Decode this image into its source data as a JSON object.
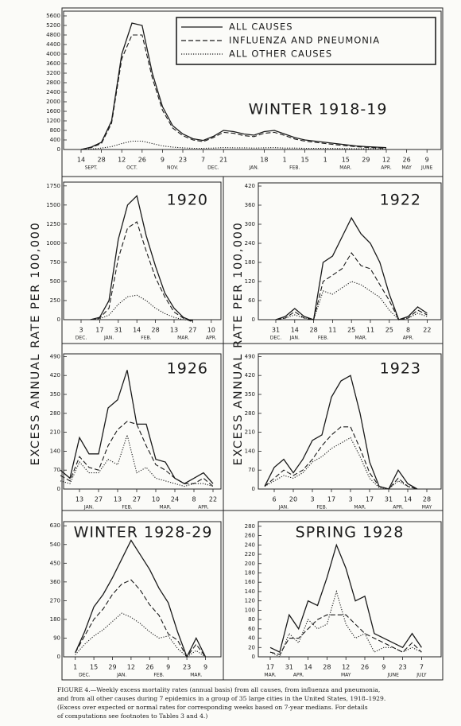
{
  "y_axis_label": "EXCESS ANNUAL RATE PER 100,000",
  "caption": [
    "FIGURE 4.—Weekly excess mortality rates (annual basis) from all causes, from influenza and pneumonia,",
    "and from all other causes during 7 epidemics in a group of 35 large cities in the United States, 1918–1929.",
    "(Excess over expected or normal rates for corresponding weeks based on 7-year medians.  For details",
    "of computations see footnotes to Tables 3 and 4.)"
  ],
  "chart_data": [
    {
      "type": "line",
      "title": "WINTER 1918-19",
      "legend": "upper right",
      "categories": [
        "14",
        null,
        "28",
        null,
        "12",
        null,
        "26",
        null,
        "9",
        null,
        "23",
        null,
        "7",
        null,
        "21",
        null,
        null,
        null,
        "18",
        null,
        "1",
        null,
        "15",
        null,
        "1",
        null,
        "15",
        null,
        "29",
        null,
        "12",
        null,
        "26",
        null,
        "9"
      ],
      "months": [
        {
          "label": "SEPT.",
          "span": [
            0,
            2
          ]
        },
        {
          "label": "OCT.",
          "span": [
            4,
            6
          ]
        },
        {
          "label": "NOV.",
          "span": [
            8,
            10
          ]
        },
        {
          "label": "DEC.",
          "span": [
            12,
            14
          ]
        },
        {
          "label": "JAN.",
          "span": [
            16,
            18
          ]
        },
        {
          "label": "FEB.",
          "span": [
            20,
            22
          ]
        },
        {
          "label": "MAR.",
          "span": [
            24,
            28
          ]
        },
        {
          "label": "APR.",
          "span": [
            30,
            30
          ]
        },
        {
          "label": "MAY",
          "span": [
            32,
            32
          ]
        },
        {
          "label": "JUNE",
          "span": [
            34,
            34
          ]
        }
      ],
      "ylim": [
        0,
        5800
      ],
      "yticks": [
        0,
        400,
        800,
        1200,
        1600,
        2000,
        2400,
        2800,
        3200,
        3600,
        4000,
        4400,
        4800,
        5200,
        5600
      ],
      "series": [
        {
          "name": "ALL CAUSES",
          "style": "solid",
          "color": "#1a1a1a",
          "values": [
            0,
            100,
            300,
            1200,
            4000,
            5300,
            5200,
            3200,
            1800,
            1000,
            650,
            450,
            380,
            550,
            800,
            750,
            650,
            600,
            750,
            800,
            650,
            500,
            400,
            350,
            300,
            250,
            200,
            150,
            120,
            100,
            80,
            null,
            null,
            null,
            null
          ]
        },
        {
          "name": "INFLUENZA AND PNEUMONIA",
          "style": "dashed",
          "color": "#1a1a1a",
          "values": [
            0,
            80,
            250,
            1100,
            3800,
            4800,
            4800,
            3000,
            1650,
            900,
            580,
            400,
            330,
            500,
            720,
            680,
            580,
            540,
            680,
            720,
            590,
            440,
            350,
            300,
            250,
            200,
            160,
            120,
            90,
            70,
            50,
            null,
            null,
            null,
            null
          ]
        },
        {
          "name": "ALL OTHER CAUSES",
          "style": "dotted",
          "color": "#1a1a1a",
          "values": [
            0,
            20,
            60,
            120,
            250,
            350,
            350,
            250,
            150,
            100,
            70,
            50,
            50,
            60,
            80,
            70,
            70,
            60,
            70,
            80,
            60,
            60,
            50,
            50,
            50,
            40,
            40,
            30,
            30,
            30,
            20,
            null,
            null,
            null,
            null
          ]
        }
      ]
    },
    {
      "type": "line",
      "title": "1920",
      "categories": [
        "3",
        null,
        "17",
        null,
        "31",
        null,
        "14",
        null,
        "28",
        null,
        "13",
        null,
        "27",
        null,
        "10"
      ],
      "months": [
        {
          "label": "DEC.",
          "span": [
            0,
            0
          ]
        },
        {
          "label": "JAN.",
          "span": [
            2,
            4
          ]
        },
        {
          "label": "FEB.",
          "span": [
            6,
            8
          ]
        },
        {
          "label": "MAR.",
          "span": [
            10,
            12
          ]
        },
        {
          "label": "APR.",
          "span": [
            14,
            14
          ]
        }
      ],
      "ylim": [
        0,
        1800
      ],
      "yticks": [
        0,
        250,
        500,
        750,
        1000,
        1250,
        1500,
        1750
      ],
      "series": [
        {
          "style": "solid",
          "color": "#1a1a1a",
          "values": [
            null,
            0,
            30,
            250,
            1050,
            1500,
            1620,
            1100,
            700,
            350,
            150,
            30,
            -20,
            null,
            null
          ]
        },
        {
          "style": "dashed",
          "color": "#1a1a1a",
          "values": [
            null,
            0,
            20,
            150,
            800,
            1200,
            1280,
            900,
            550,
            300,
            100,
            20,
            -30,
            null,
            null
          ]
        },
        {
          "style": "dotted",
          "color": "#1a1a1a",
          "values": [
            null,
            0,
            10,
            60,
            200,
            300,
            320,
            250,
            150,
            80,
            30,
            0,
            -10,
            null,
            null
          ]
        }
      ]
    },
    {
      "type": "line",
      "title": "1922",
      "categories": [
        "31",
        null,
        "14",
        null,
        "28",
        null,
        "11",
        null,
        "25",
        null,
        "11",
        null,
        "25",
        null,
        "8",
        null,
        "22"
      ],
      "months": [
        {
          "label": "DEC.",
          "span": [
            0,
            0
          ]
        },
        {
          "label": "JAN.",
          "span": [
            2,
            2
          ]
        },
        {
          "label": "FEB.",
          "span": [
            4,
            6
          ]
        },
        {
          "label": "MAR.",
          "span": [
            8,
            10
          ]
        },
        {
          "label": "APR.",
          "span": [
            14,
            14
          ]
        }
      ],
      "ylim": [
        0,
        430
      ],
      "yticks": [
        0,
        60,
        120,
        180,
        240,
        300,
        360,
        420
      ],
      "series": [
        {
          "style": "solid",
          "color": "#1a1a1a",
          "values": [
            0,
            10,
            35,
            10,
            0,
            180,
            200,
            260,
            320,
            270,
            240,
            180,
            80,
            0,
            10,
            40,
            20
          ]
        },
        {
          "style": "dashed",
          "color": "#1a1a1a",
          "values": [
            0,
            5,
            25,
            5,
            0,
            120,
            140,
            160,
            210,
            170,
            160,
            110,
            60,
            0,
            5,
            30,
            15
          ]
        },
        {
          "style": "dotted",
          "color": "#1a1a1a",
          "values": [
            0,
            5,
            15,
            5,
            0,
            90,
            80,
            100,
            120,
            110,
            90,
            70,
            30,
            0,
            5,
            20,
            10
          ]
        }
      ]
    },
    {
      "type": "line",
      "title": "1926",
      "categories": [
        null,
        null,
        "13",
        null,
        "27",
        null,
        "13",
        null,
        "27",
        null,
        "10",
        null,
        "24",
        null,
        "8",
        null,
        "22"
      ],
      "months": [
        {
          "label": "JAN.",
          "span": [
            2,
            4
          ]
        },
        {
          "label": "FEB.",
          "span": [
            6,
            8
          ]
        },
        {
          "label": "MAR.",
          "span": [
            10,
            12
          ]
        },
        {
          "label": "APR.",
          "span": [
            14,
            16
          ]
        }
      ],
      "ylim": [
        0,
        500
      ],
      "yticks": [
        0,
        70,
        140,
        210,
        280,
        350,
        420,
        490
      ],
      "series": [
        {
          "style": "solid",
          "color": "#1a1a1a",
          "values": [
            70,
            40,
            190,
            130,
            130,
            300,
            330,
            440,
            240,
            240,
            110,
            100,
            40,
            20,
            40,
            60,
            20
          ]
        },
        {
          "style": "dashed",
          "color": "#1a1a1a",
          "values": [
            50,
            30,
            120,
            80,
            70,
            160,
            220,
            250,
            240,
            160,
            90,
            70,
            40,
            20,
            20,
            40,
            10
          ]
        },
        {
          "style": "dotted",
          "color": "#1a1a1a",
          "values": [
            30,
            20,
            100,
            60,
            60,
            110,
            90,
            200,
            60,
            80,
            40,
            30,
            20,
            10,
            20,
            20,
            10
          ]
        }
      ]
    },
    {
      "type": "line",
      "title": "1923",
      "categories": [
        null,
        "6",
        null,
        "20",
        null,
        "3",
        null,
        "17",
        null,
        "3",
        null,
        "17",
        null,
        "31",
        null,
        "14",
        null,
        "28"
      ],
      "months": [
        {
          "label": "JAN.",
          "span": [
            1,
            3
          ]
        },
        {
          "label": "FEB.",
          "span": [
            5,
            7
          ]
        },
        {
          "label": "MAR.",
          "span": [
            9,
            11
          ]
        },
        {
          "label": "APR.",
          "span": [
            13,
            15
          ]
        },
        {
          "label": "MAY",
          "span": [
            17,
            17
          ]
        }
      ],
      "ylim": [
        0,
        500
      ],
      "yticks": [
        0,
        70,
        140,
        210,
        280,
        350,
        420,
        490
      ],
      "series": [
        {
          "style": "solid",
          "color": "#1a1a1a",
          "values": [
            10,
            80,
            110,
            60,
            110,
            180,
            200,
            340,
            400,
            420,
            280,
            100,
            10,
            0,
            70,
            20,
            0,
            null
          ]
        },
        {
          "style": "dashed",
          "color": "#1a1a1a",
          "values": [
            10,
            40,
            70,
            50,
            70,
            110,
            160,
            200,
            230,
            230,
            150,
            60,
            10,
            0,
            40,
            10,
            0,
            null
          ]
        },
        {
          "style": "dotted",
          "color": "#1a1a1a",
          "values": [
            10,
            30,
            50,
            40,
            60,
            100,
            120,
            150,
            170,
            190,
            120,
            40,
            5,
            0,
            30,
            10,
            0,
            null
          ]
        }
      ]
    },
    {
      "type": "line",
      "title": "WINTER 1928-29",
      "categories": [
        null,
        "1",
        null,
        "15",
        null,
        "29",
        null,
        "12",
        null,
        "26",
        null,
        "9",
        null,
        "23",
        null,
        "9",
        null
      ],
      "months": [
        {
          "label": "DEC.",
          "span": [
            1,
            3
          ]
        },
        {
          "label": "JAN.",
          "span": [
            5,
            7
          ]
        },
        {
          "label": "FEB.",
          "span": [
            9,
            11
          ]
        },
        {
          "label": "MAR.",
          "span": [
            13,
            15
          ]
        }
      ],
      "ylim": [
        0,
        650
      ],
      "yticks": [
        0,
        90,
        180,
        270,
        360,
        450,
        540,
        630
      ],
      "series": [
        {
          "style": "solid",
          "color": "#1a1a1a",
          "values": [
            null,
            20,
            120,
            240,
            300,
            380,
            470,
            560,
            490,
            420,
            330,
            260,
            120,
            0,
            90,
            0,
            null
          ]
        },
        {
          "style": "dashed",
          "color": "#1a1a1a",
          "values": [
            null,
            20,
            100,
            180,
            230,
            300,
            350,
            370,
            320,
            250,
            200,
            110,
            80,
            0,
            60,
            0,
            null
          ]
        },
        {
          "style": "dotted",
          "color": "#1a1a1a",
          "values": [
            null,
            10,
            60,
            100,
            130,
            170,
            210,
            190,
            160,
            120,
            90,
            100,
            40,
            0,
            30,
            0,
            null
          ]
        }
      ]
    },
    {
      "type": "line",
      "title": "SPRING 1928",
      "categories": [
        "17",
        null,
        "31",
        null,
        "14",
        null,
        "28",
        null,
        "12",
        null,
        "26",
        null,
        "9",
        null,
        "23",
        null,
        "7"
      ],
      "months": [
        {
          "label": "MAR.",
          "span": [
            0,
            0
          ]
        },
        {
          "label": "APR.",
          "span": [
            2,
            4
          ]
        },
        {
          "label": "MAY",
          "span": [
            6,
            10
          ]
        },
        {
          "label": "JUNE",
          "span": [
            12,
            14
          ]
        },
        {
          "label": "JULY",
          "span": [
            16,
            16
          ]
        }
      ],
      "ylim": [
        0,
        290
      ],
      "yticks": [
        0,
        20,
        40,
        60,
        80,
        100,
        120,
        140,
        160,
        180,
        200,
        220,
        240,
        260,
        280
      ],
      "series": [
        {
          "style": "solid",
          "color": "#1a1a1a",
          "values": [
            20,
            10,
            90,
            60,
            120,
            110,
            170,
            240,
            190,
            120,
            130,
            50,
            40,
            30,
            20,
            50,
            20
          ]
        },
        {
          "style": "dashed",
          "color": "#1a1a1a",
          "values": [
            10,
            5,
            40,
            40,
            60,
            80,
            90,
            90,
            90,
            70,
            50,
            40,
            30,
            20,
            10,
            30,
            10
          ]
        },
        {
          "style": "dotted",
          "color": "#1a1a1a",
          "values": [
            10,
            0,
            50,
            30,
            80,
            60,
            70,
            140,
            70,
            40,
            50,
            10,
            20,
            20,
            10,
            20,
            10
          ]
        }
      ]
    }
  ]
}
